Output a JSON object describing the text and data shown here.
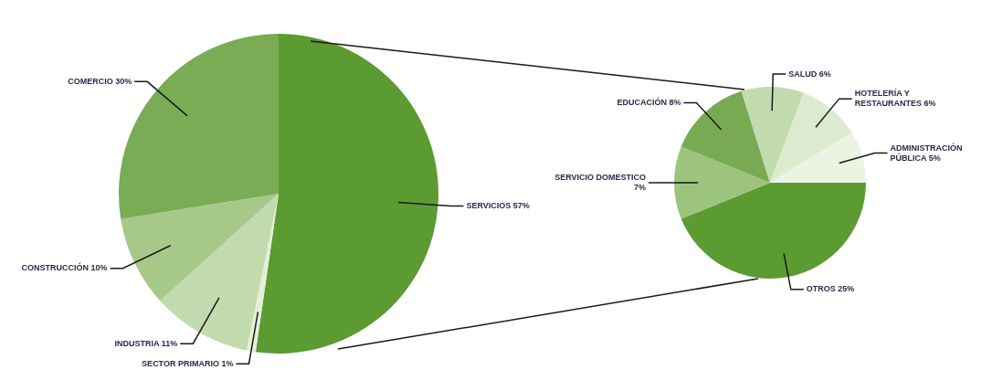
{
  "chart_data": [
    {
      "type": "pie",
      "categories": [
        "SERVICIOS",
        "SECTOR PRIMARIO",
        "INDUSTRIA",
        "CONSTRUCCIÓN",
        "COMERCIO"
      ],
      "values": [
        57,
        1,
        11,
        10,
        30
      ],
      "value_labels": [
        "57%",
        "1%",
        "11%",
        "10%",
        "30%"
      ],
      "colors": [
        "#5c9a32",
        "#e4efd8",
        "#c2dbae",
        "#a6c98a",
        "#7aab55"
      ]
    },
    {
      "type": "pie",
      "categories": [
        "OTROS",
        "SERVICIO DOMESTICO",
        "EDUCACIÓN",
        "SALUD",
        "HOTELERÍA Y RESTAURANTES",
        "ADMINISTRACIÓN PÚBLICA"
      ],
      "values": [
        25,
        7,
        8,
        6,
        6,
        5
      ],
      "value_labels": [
        "25%",
        "7%",
        "8%",
        "6%",
        "6%",
        "5%"
      ],
      "colors": [
        "#5c9a32",
        "#9cc47c",
        "#78aa54",
        "#c2dbae",
        "#dcebcf",
        "#ebf3e3"
      ]
    }
  ]
}
